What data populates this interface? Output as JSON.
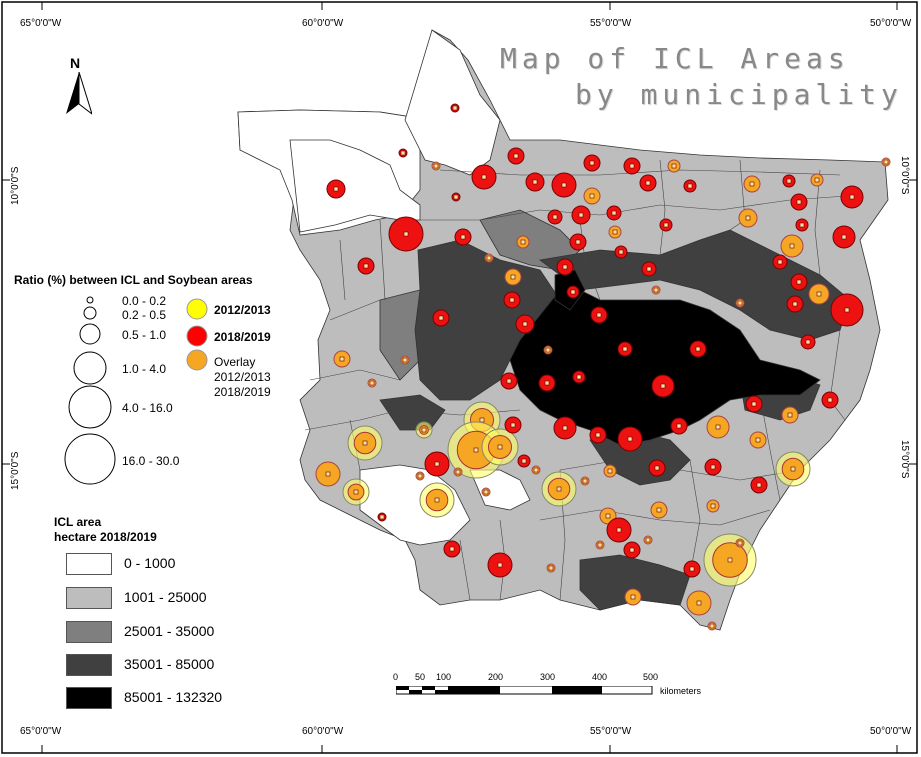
{
  "title": {
    "line1": "Map of ICL Areas",
    "line2": "by municipality"
  },
  "coordinates": {
    "top": [
      "65°0'0\"W",
      "60°0'0\"W",
      "55°0'0\"W",
      "50°0'0\"W"
    ],
    "bottom": [
      "65°0'0\"W",
      "60°0'0\"W",
      "55°0'0\"W",
      "50°0'0\"W"
    ],
    "left": [
      "10°0'0\"S",
      "15°0'0\"S"
    ],
    "right": [
      "10°0'0\"S",
      "15°0'0\"S"
    ]
  },
  "north_arrow": {
    "label": "N"
  },
  "ratio_legend": {
    "title": "Ratio (%) between ICL and Soybean areas",
    "classes": [
      "0.0 - 0.2",
      "0.2 - 0.5",
      "0.5 - 1.0",
      "1.0 - 4.0",
      "4.0 - 16.0",
      "16.0 - 30.0"
    ],
    "years": [
      {
        "label": "2012/2013",
        "color": "#ffff00"
      },
      {
        "label": "2018/2019",
        "color": "#ff0000"
      },
      {
        "label": "Overlay\n2012/2013\n2018/2019",
        "color": "#f5a623"
      }
    ]
  },
  "area_legend": {
    "title_line1": "ICL area",
    "title_line2": "hectare 2018/2019",
    "classes": [
      {
        "label": "0 - 1000",
        "color": "#ffffff"
      },
      {
        "label": "1001 - 25000",
        "color": "#bdbdbd"
      },
      {
        "label": "25001 - 35000",
        "color": "#7f7f7f"
      },
      {
        "label": "35001 - 85000",
        "color": "#404040"
      },
      {
        "label": "85001 - 132320",
        "color": "#000000"
      }
    ]
  },
  "scale_bar": {
    "ticks": [
      "0",
      "50",
      "100",
      "200",
      "300",
      "400",
      "500"
    ],
    "unit": "kilometers"
  }
}
